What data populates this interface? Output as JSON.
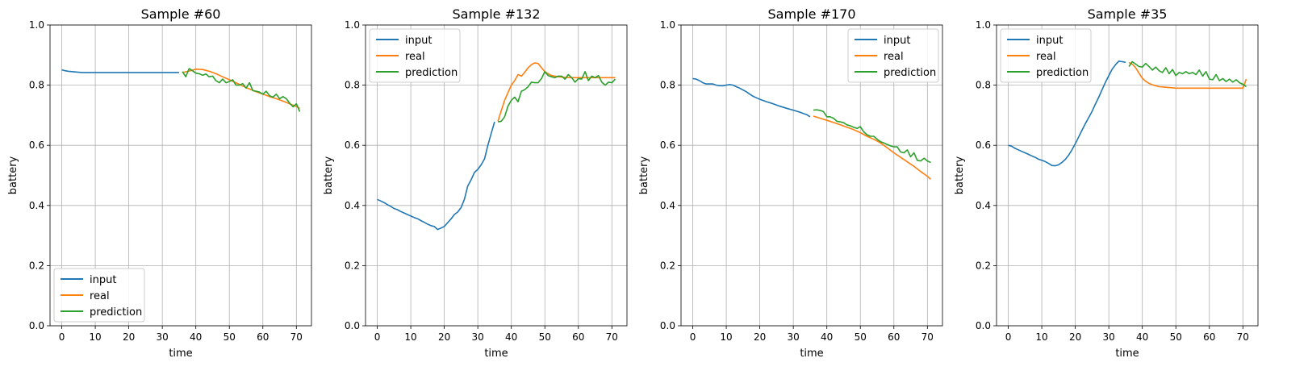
{
  "figure": {
    "background": "#ffffff"
  },
  "series_styles": [
    {
      "name": "input",
      "color": "#1f77b4"
    },
    {
      "name": "real",
      "color": "#ff7f0e"
    },
    {
      "name": "prediction",
      "color": "#2ca02c"
    }
  ],
  "chart_data": [
    {
      "type": "line",
      "title": "Sample #60",
      "xlabel": "time",
      "ylabel": "battery",
      "xlim": [
        -3.5,
        74.5
      ],
      "ylim": [
        0,
        1
      ],
      "xticks": [
        0,
        10,
        20,
        30,
        40,
        50,
        60,
        70
      ],
      "yticks": [
        0.0,
        0.2,
        0.4,
        0.6,
        0.8,
        1.0
      ],
      "xtick_labels": [
        "0",
        "10",
        "20",
        "30",
        "40",
        "50",
        "60",
        "70"
      ],
      "ytick_labels": [
        "0.0",
        "0.2",
        "0.4",
        "0.6",
        "0.8",
        "1.0"
      ],
      "grid": true,
      "legend_location": "lower-left",
      "series": [
        {
          "name": "input",
          "x": [
            0,
            1,
            2,
            3,
            4,
            5,
            6,
            8,
            10,
            15,
            20,
            25,
            30,
            35
          ],
          "y": [
            0.851,
            0.848,
            0.846,
            0.845,
            0.844,
            0.843,
            0.842,
            0.842,
            0.842,
            0.842,
            0.842,
            0.842,
            0.842,
            0.842
          ]
        },
        {
          "name": "real",
          "x": [
            36,
            38,
            40,
            42,
            44,
            46,
            48,
            50,
            52,
            54,
            56,
            58,
            60,
            62,
            64,
            66,
            68,
            70,
            71
          ],
          "y": [
            0.842,
            0.847,
            0.853,
            0.852,
            0.846,
            0.838,
            0.828,
            0.818,
            0.808,
            0.797,
            0.787,
            0.778,
            0.77,
            0.762,
            0.755,
            0.747,
            0.738,
            0.729,
            0.723
          ]
        },
        {
          "name": "prediction",
          "x": [
            36,
            37,
            38,
            39,
            40,
            41,
            42,
            43,
            44,
            45,
            46,
            47,
            48,
            49,
            50,
            51,
            52,
            53,
            54,
            55,
            56,
            57,
            58,
            59,
            60,
            61,
            62,
            63,
            64,
            65,
            66,
            67,
            68,
            69,
            70,
            71
          ],
          "y": [
            0.845,
            0.828,
            0.855,
            0.848,
            0.84,
            0.838,
            0.833,
            0.837,
            0.828,
            0.83,
            0.815,
            0.808,
            0.82,
            0.808,
            0.812,
            0.818,
            0.8,
            0.8,
            0.805,
            0.79,
            0.808,
            0.782,
            0.78,
            0.777,
            0.77,
            0.78,
            0.765,
            0.76,
            0.77,
            0.755,
            0.762,
            0.755,
            0.74,
            0.728,
            0.738,
            0.712
          ]
        }
      ]
    },
    {
      "type": "line",
      "title": "Sample #132",
      "xlabel": "time",
      "ylabel": "battery",
      "xlim": [
        -3.5,
        74.5
      ],
      "ylim": [
        0,
        1
      ],
      "xticks": [
        0,
        10,
        20,
        30,
        40,
        50,
        60,
        70
      ],
      "yticks": [
        0.0,
        0.2,
        0.4,
        0.6,
        0.8,
        1.0
      ],
      "xtick_labels": [
        "0",
        "10",
        "20",
        "30",
        "40",
        "50",
        "60",
        "70"
      ],
      "ytick_labels": [
        "0.0",
        "0.2",
        "0.4",
        "0.6",
        "0.8",
        "1.0"
      ],
      "grid": true,
      "legend_location": "upper-left",
      "series": [
        {
          "name": "input",
          "x": [
            0,
            1,
            2,
            3,
            4,
            5,
            6,
            7,
            8,
            9,
            10,
            11,
            12,
            13,
            14,
            15,
            16,
            17,
            18,
            19,
            20,
            21,
            22,
            23,
            24,
            25,
            26,
            27,
            28,
            29,
            30,
            31,
            32,
            33,
            34,
            35
          ],
          "y": [
            0.42,
            0.415,
            0.41,
            0.403,
            0.397,
            0.39,
            0.386,
            0.38,
            0.375,
            0.37,
            0.365,
            0.36,
            0.356,
            0.35,
            0.344,
            0.338,
            0.333,
            0.33,
            0.32,
            0.325,
            0.33,
            0.343,
            0.355,
            0.37,
            0.378,
            0.393,
            0.42,
            0.465,
            0.485,
            0.51,
            0.52,
            0.535,
            0.555,
            0.6,
            0.64,
            0.678
          ]
        },
        {
          "name": "real",
          "x": [
            36,
            37,
            38,
            39,
            40,
            41,
            42,
            43,
            44,
            45,
            46,
            47,
            48,
            49,
            50,
            51,
            52,
            53,
            54,
            56,
            58,
            60,
            62,
            64,
            66,
            68,
            70,
            71
          ],
          "y": [
            0.68,
            0.715,
            0.75,
            0.775,
            0.8,
            0.815,
            0.835,
            0.83,
            0.843,
            0.858,
            0.868,
            0.874,
            0.872,
            0.858,
            0.845,
            0.838,
            0.832,
            0.83,
            0.828,
            0.826,
            0.825,
            0.825,
            0.825,
            0.825,
            0.825,
            0.825,
            0.825,
            0.825
          ]
        },
        {
          "name": "prediction",
          "x": [
            36,
            37,
            38,
            39,
            40,
            41,
            42,
            43,
            44,
            45,
            46,
            47,
            48,
            49,
            50,
            51,
            52,
            53,
            54,
            55,
            56,
            57,
            58,
            59,
            60,
            61,
            62,
            63,
            64,
            65,
            66,
            67,
            68,
            69,
            70,
            71
          ],
          "y": [
            0.678,
            0.68,
            0.695,
            0.73,
            0.75,
            0.76,
            0.745,
            0.78,
            0.785,
            0.795,
            0.81,
            0.808,
            0.808,
            0.822,
            0.845,
            0.832,
            0.828,
            0.825,
            0.83,
            0.83,
            0.82,
            0.835,
            0.825,
            0.81,
            0.822,
            0.82,
            0.845,
            0.815,
            0.83,
            0.825,
            0.832,
            0.81,
            0.8,
            0.81,
            0.808,
            0.82
          ]
        }
      ]
    },
    {
      "type": "line",
      "title": "Sample #170",
      "xlabel": "time",
      "ylabel": "battery",
      "xlim": [
        -3.5,
        74.5
      ],
      "ylim": [
        0,
        1
      ],
      "xticks": [
        0,
        10,
        20,
        30,
        40,
        50,
        60,
        70
      ],
      "yticks": [
        0.0,
        0.2,
        0.4,
        0.6,
        0.8,
        1.0
      ],
      "xtick_labels": [
        "0",
        "10",
        "20",
        "30",
        "40",
        "50",
        "60",
        "70"
      ],
      "ytick_labels": [
        "0.0",
        "0.2",
        "0.4",
        "0.6",
        "0.8",
        "1.0"
      ],
      "grid": true,
      "legend_location": "upper-right",
      "series": [
        {
          "name": "input",
          "x": [
            0,
            1,
            2,
            3,
            4,
            5,
            6,
            7,
            8,
            9,
            10,
            11,
            12,
            13,
            14,
            15,
            16,
            17,
            18,
            19,
            20,
            22,
            24,
            26,
            28,
            30,
            32,
            34,
            35
          ],
          "y": [
            0.822,
            0.82,
            0.815,
            0.808,
            0.804,
            0.804,
            0.804,
            0.8,
            0.798,
            0.798,
            0.8,
            0.802,
            0.8,
            0.795,
            0.79,
            0.784,
            0.778,
            0.77,
            0.763,
            0.758,
            0.753,
            0.745,
            0.738,
            0.73,
            0.723,
            0.717,
            0.71,
            0.702,
            0.695
          ]
        },
        {
          "name": "real",
          "x": [
            36,
            38,
            40,
            42,
            44,
            46,
            48,
            50,
            52,
            54,
            56,
            58,
            60,
            62,
            64,
            66,
            68,
            70,
            71
          ],
          "y": [
            0.697,
            0.69,
            0.683,
            0.676,
            0.668,
            0.66,
            0.652,
            0.642,
            0.63,
            0.62,
            0.608,
            0.592,
            0.575,
            0.56,
            0.545,
            0.53,
            0.513,
            0.497,
            0.487
          ]
        },
        {
          "name": "prediction",
          "x": [
            36,
            37,
            38,
            39,
            40,
            41,
            42,
            43,
            44,
            45,
            46,
            47,
            48,
            49,
            50,
            51,
            52,
            53,
            54,
            55,
            56,
            57,
            58,
            59,
            60,
            61,
            62,
            63,
            64,
            65,
            66,
            67,
            68,
            69,
            70,
            71
          ],
          "y": [
            0.717,
            0.718,
            0.716,
            0.712,
            0.695,
            0.695,
            0.69,
            0.68,
            0.678,
            0.675,
            0.668,
            0.665,
            0.66,
            0.656,
            0.662,
            0.645,
            0.635,
            0.63,
            0.63,
            0.62,
            0.612,
            0.608,
            0.603,
            0.598,
            0.595,
            0.595,
            0.578,
            0.575,
            0.585,
            0.562,
            0.575,
            0.55,
            0.548,
            0.557,
            0.548,
            0.543
          ]
        }
      ]
    },
    {
      "type": "line",
      "title": "Sample #35",
      "xlabel": "time",
      "ylabel": "battery",
      "xlim": [
        -3.5,
        74.5
      ],
      "ylim": [
        0,
        1
      ],
      "xticks": [
        0,
        10,
        20,
        30,
        40,
        50,
        60,
        70
      ],
      "yticks": [
        0.0,
        0.2,
        0.4,
        0.6,
        0.8,
        1.0
      ],
      "xtick_labels": [
        "0",
        "10",
        "20",
        "30",
        "40",
        "50",
        "60",
        "70"
      ],
      "ytick_labels": [
        "0.0",
        "0.2",
        "0.4",
        "0.6",
        "0.8",
        "1.0"
      ],
      "grid": true,
      "legend_location": "upper-left",
      "series": [
        {
          "name": "input",
          "x": [
            0,
            1,
            2,
            3,
            4,
            5,
            6,
            7,
            8,
            9,
            10,
            11,
            12,
            13,
            14,
            15,
            16,
            17,
            18,
            19,
            20,
            21,
            22,
            23,
            24,
            25,
            26,
            27,
            28,
            29,
            30,
            31,
            32,
            33,
            34,
            35
          ],
          "y": [
            0.6,
            0.597,
            0.59,
            0.585,
            0.58,
            0.575,
            0.57,
            0.565,
            0.56,
            0.554,
            0.55,
            0.546,
            0.54,
            0.533,
            0.532,
            0.535,
            0.543,
            0.553,
            0.567,
            0.585,
            0.605,
            0.628,
            0.65,
            0.672,
            0.692,
            0.713,
            0.737,
            0.76,
            0.785,
            0.81,
            0.832,
            0.853,
            0.868,
            0.88,
            0.878,
            0.876
          ]
        },
        {
          "name": "real",
          "x": [
            36,
            37,
            38,
            39,
            40,
            41,
            42,
            43,
            44,
            45,
            46,
            48,
            50,
            55,
            60,
            65,
            70,
            71
          ],
          "y": [
            0.875,
            0.87,
            0.858,
            0.84,
            0.823,
            0.813,
            0.806,
            0.801,
            0.798,
            0.795,
            0.794,
            0.792,
            0.79,
            0.79,
            0.79,
            0.79,
            0.79,
            0.82
          ]
        },
        {
          "name": "prediction",
          "x": [
            36,
            37,
            38,
            39,
            40,
            41,
            42,
            43,
            44,
            45,
            46,
            47,
            48,
            49,
            50,
            51,
            52,
            53,
            54,
            55,
            56,
            57,
            58,
            59,
            60,
            61,
            62,
            63,
            64,
            65,
            66,
            67,
            68,
            69,
            70,
            71
          ],
          "y": [
            0.862,
            0.878,
            0.87,
            0.862,
            0.86,
            0.872,
            0.862,
            0.85,
            0.86,
            0.848,
            0.842,
            0.858,
            0.838,
            0.852,
            0.832,
            0.842,
            0.838,
            0.845,
            0.838,
            0.842,
            0.835,
            0.85,
            0.83,
            0.845,
            0.82,
            0.818,
            0.835,
            0.815,
            0.822,
            0.812,
            0.82,
            0.81,
            0.818,
            0.808,
            0.803,
            0.795
          ]
        }
      ]
    }
  ]
}
